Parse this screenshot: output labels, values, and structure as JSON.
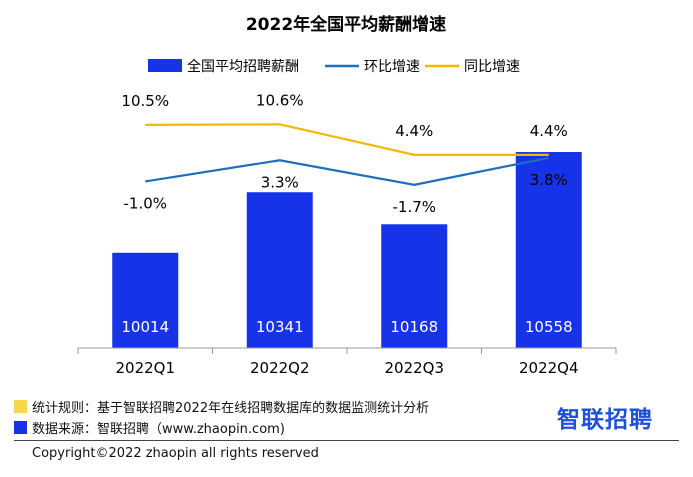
{
  "chart_data": {
    "type": "bar",
    "title": "2022年全国平均薪酬增速",
    "categories": [
      "2022Q1",
      "2022Q2",
      "2022Q3",
      "2022Q4"
    ],
    "series": [
      {
        "name": "全国平均招聘薪酬",
        "kind": "bar",
        "values": [
          10014,
          10341,
          10168,
          10558
        ],
        "color": "#1633e8"
      },
      {
        "name": "环比增速",
        "kind": "line",
        "values": [
          -1.0,
          3.3,
          -1.7,
          3.8
        ],
        "labels": [
          "-1.0%",
          "3.3%",
          "-1.7%",
          "3.8%"
        ],
        "color": "#1f6fbf"
      },
      {
        "name": "同比增速",
        "kind": "line",
        "values": [
          10.5,
          10.6,
          4.4,
          4.4
        ],
        "labels": [
          "10.5%",
          "10.6%",
          "4.4%",
          "4.4%"
        ],
        "color": "#f5b800"
      }
    ],
    "grid": false,
    "legend": "top"
  },
  "notes": {
    "rule": {
      "text": "统计规则：基于智联招聘2022年在线招聘数据库的数据监测统计分析",
      "color": "#f7d64a"
    },
    "source": {
      "text": "数据来源：智联招聘（www.zhaopin.com)",
      "color": "#1633e8"
    }
  },
  "brand": "智联招聘",
  "copyright": "Copyright©2022 zhaopin all rights reserved"
}
